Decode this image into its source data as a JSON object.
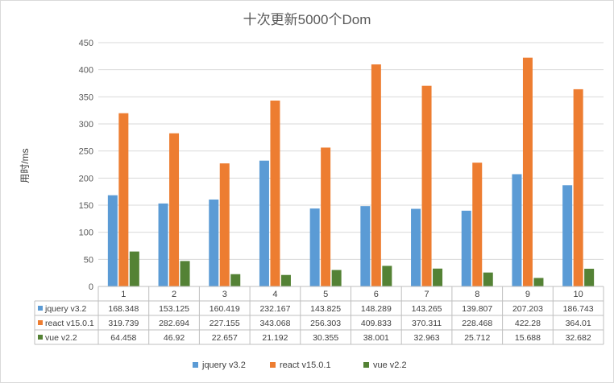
{
  "chart_data": {
    "type": "bar",
    "title": "十次更新5000个Dom",
    "ylabel": "用时/ms",
    "xlabel": "",
    "ylim": [
      0,
      450
    ],
    "yticks": [
      0,
      50,
      100,
      150,
      200,
      250,
      300,
      350,
      400,
      450
    ],
    "grid": true,
    "legend": "bottom",
    "categories": [
      "1",
      "2",
      "3",
      "4",
      "5",
      "6",
      "7",
      "8",
      "9",
      "10"
    ],
    "series": [
      {
        "name": "jquery v3.2",
        "color": "#5b9bd5",
        "values": [
          168.348,
          153.125,
          160.419,
          232.167,
          143.825,
          148.289,
          143.265,
          139.807,
          207.203,
          186.743
        ],
        "labels": [
          "168.348",
          "153.125",
          "160.419",
          "232.167",
          "143.825",
          "148.289",
          "143.265",
          "139.807",
          "207.203",
          "186.743"
        ]
      },
      {
        "name": "react v15.0.1",
        "color": "#ed7d31",
        "values": [
          319.739,
          282.694,
          227.155,
          343.068,
          256.303,
          409.833,
          370.311,
          228.468,
          422.28,
          364.01
        ],
        "labels": [
          "319.739",
          "282.694",
          "227.155",
          "343.068",
          "256.303",
          "409.833",
          "370.311",
          "228.468",
          "422.28",
          "364.01"
        ]
      },
      {
        "name": "vue v2.2",
        "color": "#548235",
        "values": [
          64.458,
          46.92,
          22.657,
          21.192,
          30.355,
          38.001,
          32.963,
          25.712,
          15.688,
          32.682
        ],
        "labels": [
          "64.458",
          "46.92",
          "22.657",
          "21.192",
          "30.355",
          "38.001",
          "32.963",
          "25.712",
          "15.688",
          "32.682"
        ]
      }
    ]
  }
}
